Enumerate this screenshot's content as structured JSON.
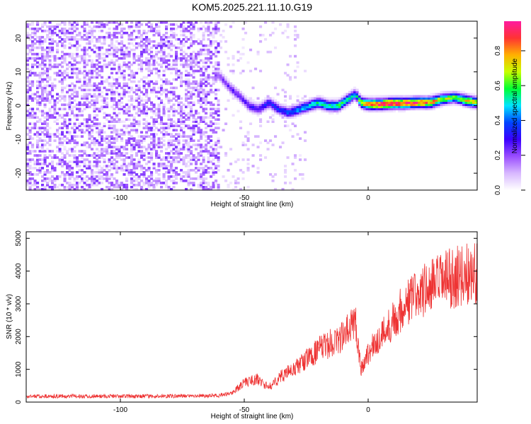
{
  "figure_title": "KOM5.2025.221.11.10.G19",
  "chart_data": [
    {
      "type": "heatmap",
      "title": "KOM5.2025.221.11.10.G19",
      "xlabel": "Height of straight line (km)",
      "ylabel": "Frequency (Hz)",
      "xlim": [
        -138,
        44
      ],
      "ylim": [
        -25,
        25
      ],
      "x_ticks": [
        -100,
        -50,
        0
      ],
      "y_ticks": [
        -20,
        -10,
        0,
        10,
        20
      ],
      "colorbar": {
        "label": "Normalized spectral amplitude",
        "range": [
          0,
          0.97
        ],
        "ticks": [
          0.0,
          0.2,
          0.4,
          0.6,
          0.8
        ],
        "colormap": [
          "#ffffff",
          "#d8b8ff",
          "#9a4dff",
          "#3a00ff",
          "#0044ff",
          "#00e5ff",
          "#00ff33",
          "#c8ff00",
          "#ffb000",
          "#ff3333",
          "#ff1aa0"
        ]
      },
      "ridge": {
        "description_free": true,
        "x": [
          -60,
          -56,
          -52,
          -48,
          -44,
          -40,
          -36,
          -32,
          -28,
          -24,
          -20,
          -16,
          -12,
          -8,
          -5,
          -3,
          0,
          5,
          10,
          15,
          20,
          25,
          30,
          35,
          40,
          44
        ],
        "frequency": [
          9,
          5.5,
          3,
          0,
          -1,
          1,
          -1,
          -2,
          -1,
          0,
          1,
          0,
          0,
          2,
          3.5,
          1,
          0.5,
          0.5,
          0.8,
          0.8,
          1,
          1,
          2,
          2.5,
          1.5,
          1
        ],
        "amplitude": [
          0.2,
          0.25,
          0.25,
          0.28,
          0.3,
          0.35,
          0.35,
          0.4,
          0.45,
          0.5,
          0.55,
          0.55,
          0.6,
          0.55,
          0.45,
          0.7,
          0.9,
          0.95,
          0.95,
          0.92,
          0.9,
          0.85,
          0.7,
          0.6,
          0.8,
          0.7
        ]
      }
    },
    {
      "type": "line",
      "xlabel": "Height of straight line (km)",
      "ylabel": "SNR (10 * v/v)",
      "xlim": [
        -138,
        44
      ],
      "ylim": [
        0,
        5200
      ],
      "x_ticks": [
        -100,
        -50,
        0
      ],
      "y_ticks": [
        0,
        1000,
        2000,
        3000,
        4000,
        5000
      ],
      "color": "#ee3333",
      "trend": {
        "x": [
          -138,
          -120,
          -100,
          -80,
          -60,
          -55,
          -50,
          -45,
          -40,
          -35,
          -30,
          -25,
          -20,
          -15,
          -10,
          -5,
          -3,
          0,
          5,
          10,
          15,
          20,
          25,
          30,
          35,
          40,
          44
        ],
        "y": [
          180,
          180,
          180,
          180,
          200,
          280,
          600,
          700,
          450,
          800,
          1000,
          1300,
          1600,
          1800,
          2000,
          2500,
          1000,
          1500,
          2000,
          2500,
          3000,
          3300,
          3500,
          3700,
          3800,
          3900,
          4000
        ]
      },
      "noise_fraction": 0.25
    }
  ]
}
